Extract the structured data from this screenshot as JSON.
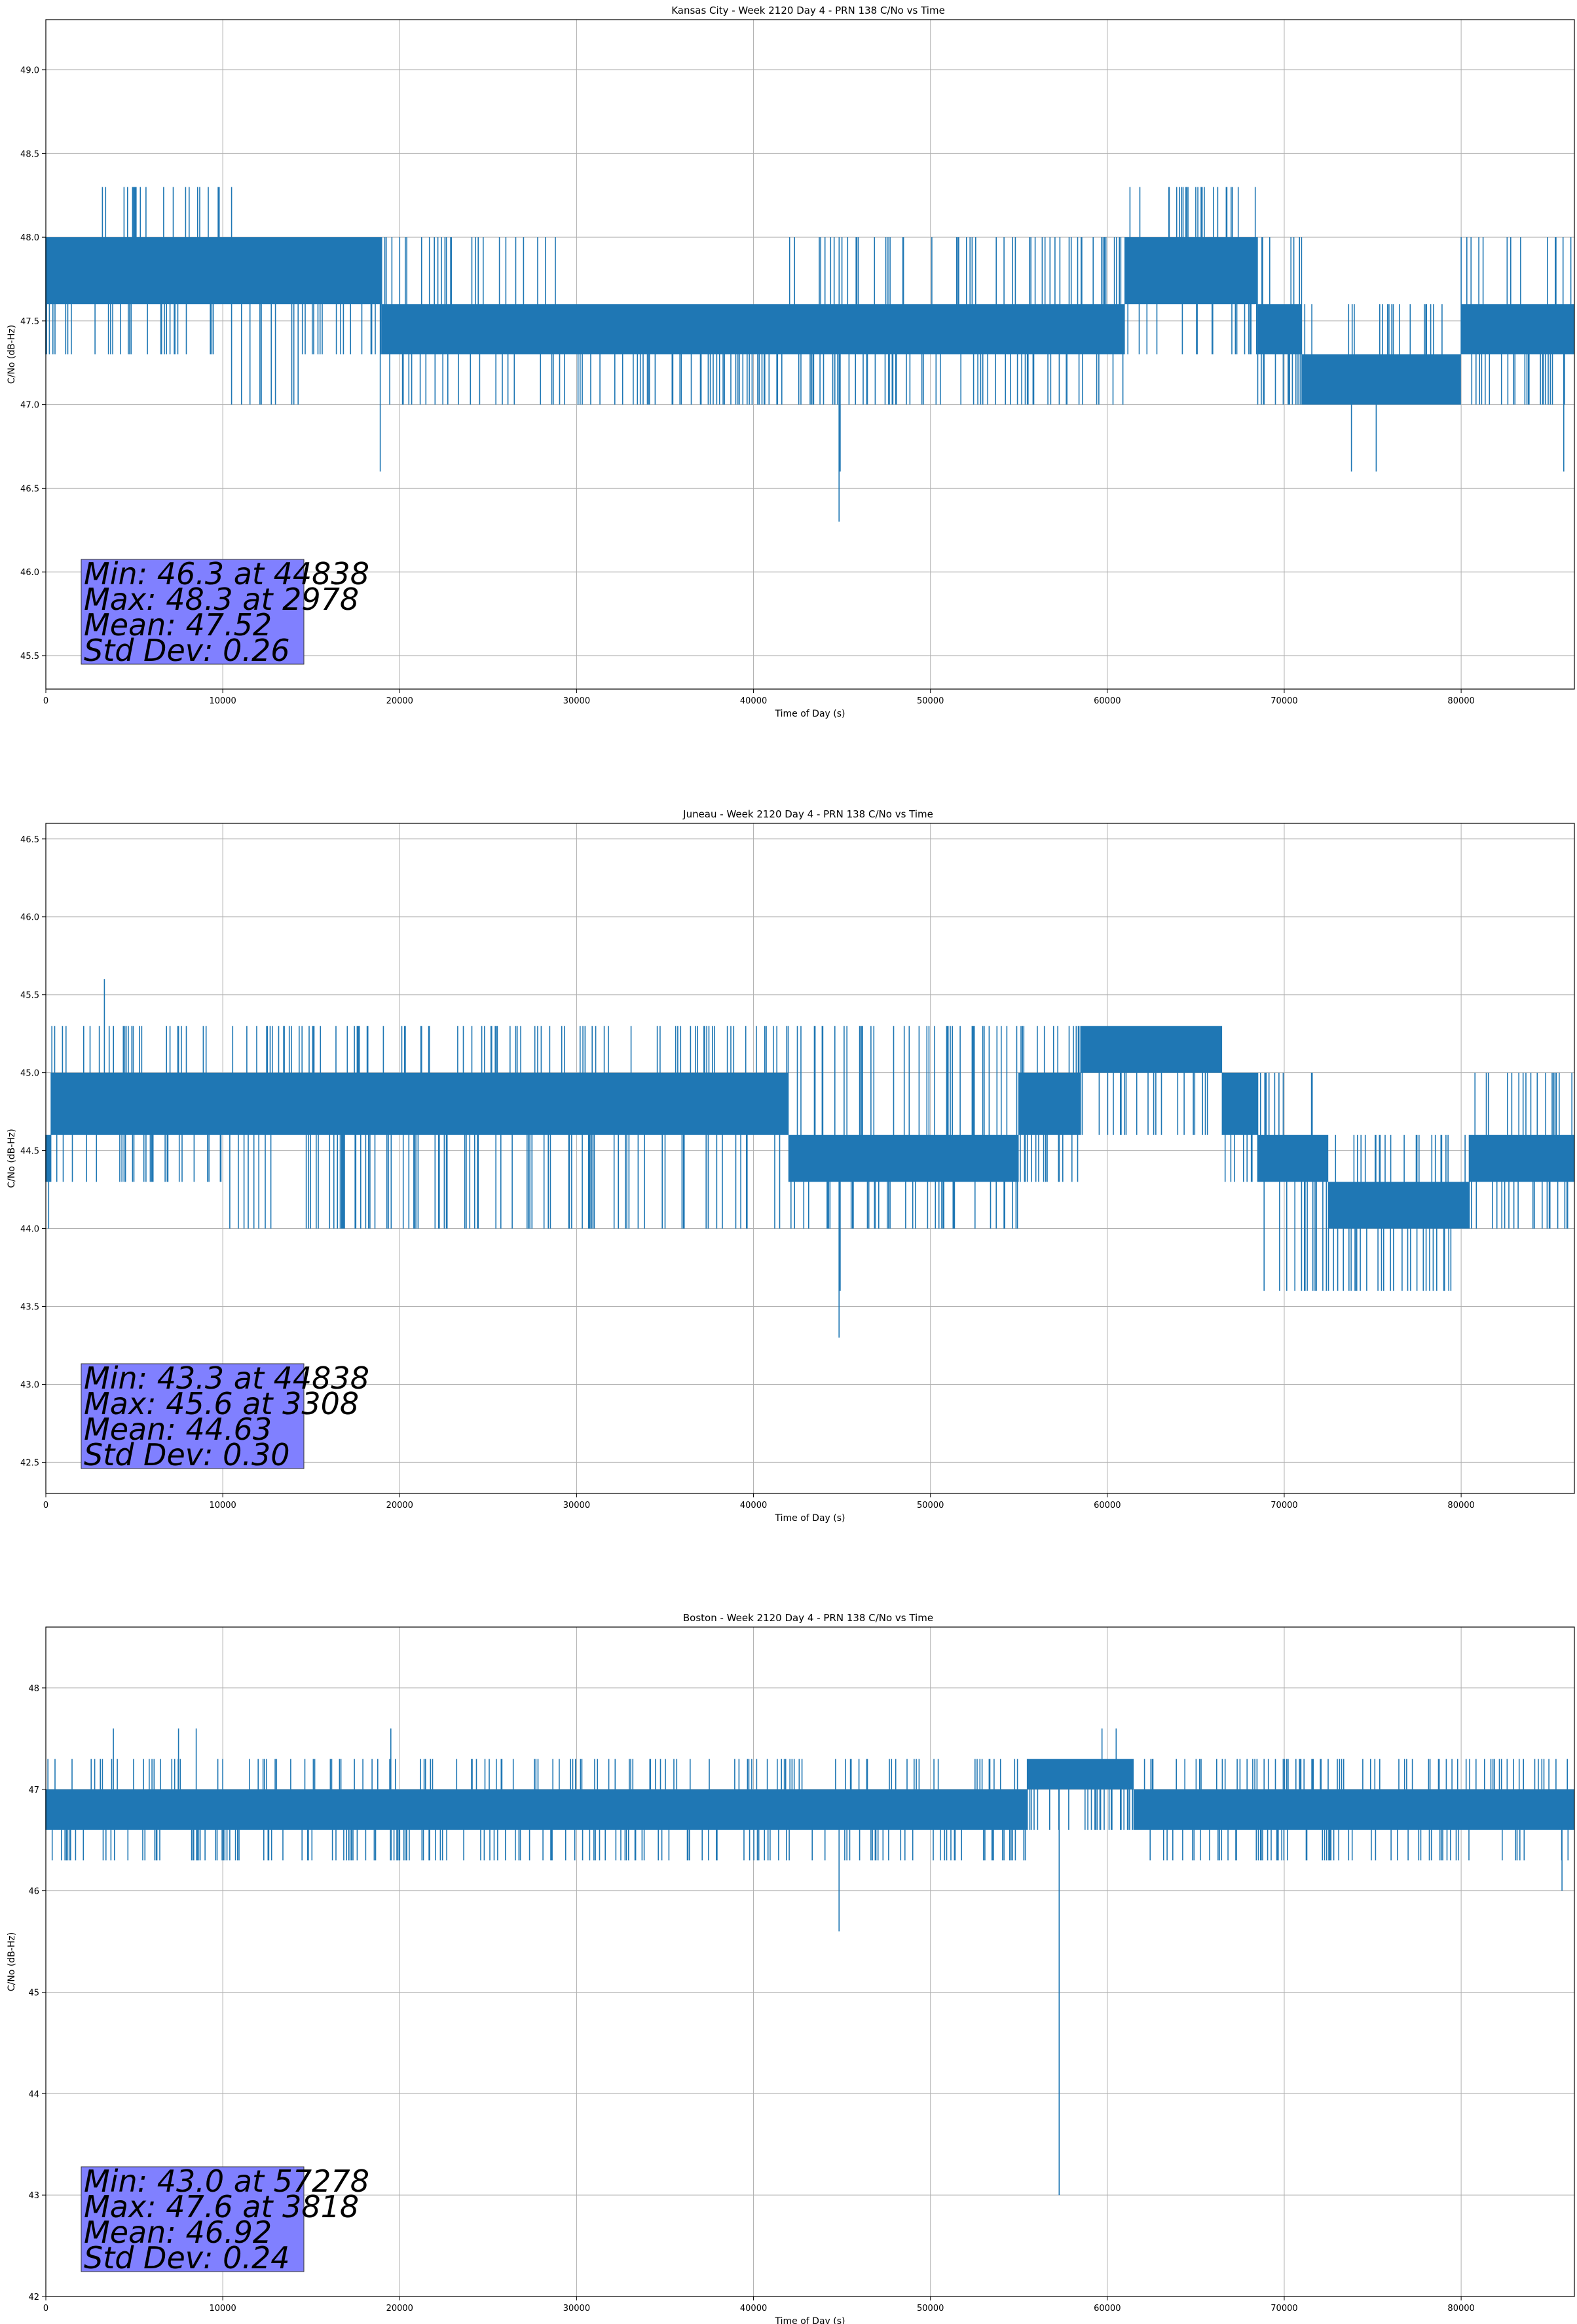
{
  "chart_data": [
    {
      "type": "line",
      "title": "Kansas City - Week 2120 Day 4 - PRN 138 C/No vs Time",
      "xlabel": "Time of Day (s)",
      "ylabel": "C/No (dB-Hz)",
      "xlim": [
        0,
        86400
      ],
      "ylim": [
        45.3,
        49.3
      ],
      "xticks": [
        0,
        10000,
        20000,
        30000,
        40000,
        50000,
        60000,
        70000,
        80000
      ],
      "yticks": [
        45.5,
        46.0,
        46.5,
        47.0,
        47.5,
        48.0,
        48.5,
        49.0
      ],
      "ytick_decimals": 1,
      "grid": true,
      "color": "#1f77b4",
      "quantization": 0.3,
      "segments": [
        {
          "from": 0,
          "to": 2500,
          "levels": [
            47.6,
            48.0
          ],
          "low": 47.3,
          "high": 48.0
        },
        {
          "from": 2500,
          "to": 10500,
          "levels": [
            47.6,
            48.0
          ],
          "low": 47.3,
          "high": 48.3
        },
        {
          "from": 10500,
          "to": 14500,
          "levels": [
            47.6,
            48.0
          ],
          "low": 47.0,
          "high": 48.0
        },
        {
          "from": 14500,
          "to": 19000,
          "levels": [
            47.6,
            48.0
          ],
          "low": 47.3,
          "high": 48.0
        },
        {
          "from": 19000,
          "to": 29000,
          "levels": [
            47.3,
            47.6
          ],
          "low": 47.0,
          "high": 48.0
        },
        {
          "from": 29000,
          "to": 42000,
          "levels": [
            47.3,
            47.6
          ],
          "low": 47.0,
          "high": 47.6
        },
        {
          "from": 42000,
          "to": 49000,
          "levels": [
            47.3,
            47.6
          ],
          "low": 47.0,
          "high": 48.0
        },
        {
          "from": 49000,
          "to": 61000,
          "levels": [
            47.3,
            47.6
          ],
          "low": 47.0,
          "high": 48.0
        },
        {
          "from": 61000,
          "to": 68500,
          "levels": [
            47.6,
            48.0
          ],
          "low": 47.3,
          "high": 48.3
        },
        {
          "from": 68500,
          "to": 71000,
          "levels": [
            47.3,
            47.6
          ],
          "low": 47.0,
          "high": 48.0
        },
        {
          "from": 71000,
          "to": 80000,
          "levels": [
            47.0,
            47.3
          ],
          "low": 47.0,
          "high": 47.6
        },
        {
          "from": 80000,
          "to": 86400,
          "levels": [
            47.3,
            47.6
          ],
          "low": 47.0,
          "high": 48.0
        }
      ],
      "spikes": [
        [
          3200,
          48.3
        ],
        [
          5000,
          48.3
        ],
        [
          7200,
          48.3
        ],
        [
          9800,
          48.3
        ],
        [
          10500,
          48.3
        ],
        [
          18900,
          46.6
        ],
        [
          44838,
          46.3
        ],
        [
          44900,
          46.6
        ],
        [
          45000,
          48.0
        ],
        [
          63500,
          48.3
        ],
        [
          64200,
          48.3
        ],
        [
          65000,
          48.3
        ],
        [
          65300,
          48.3
        ],
        [
          67000,
          48.3
        ],
        [
          73800,
          46.6
        ],
        [
          75200,
          46.6
        ],
        [
          85800,
          46.6
        ],
        [
          86200,
          48.0
        ]
      ],
      "stats_lines": [
        "Min: 46.3 at 44838",
        "Max: 48.3 at 2978",
        "Mean: 47.52",
        "Std Dev: 0.26"
      ],
      "stats_box_color": "#8080ff",
      "stats_box_anchor": "lower-left"
    },
    {
      "type": "line",
      "title": "Juneau - Week 2120 Day 4 - PRN 138 C/No vs Time",
      "xlabel": "Time of Day (s)",
      "ylabel": "C/No (dB-Hz)",
      "xlim": [
        0,
        86400
      ],
      "ylim": [
        42.3,
        46.6
      ],
      "xticks": [
        0,
        10000,
        20000,
        30000,
        40000,
        50000,
        60000,
        70000,
        80000
      ],
      "yticks": [
        42.5,
        43.0,
        43.5,
        44.0,
        44.5,
        45.0,
        45.5,
        46.0,
        46.5
      ],
      "ytick_decimals": 1,
      "grid": true,
      "color": "#1f77b4",
      "quantization": 0.3,
      "segments": [
        {
          "from": 0,
          "to": 300,
          "levels": [
            44.3,
            44.6
          ],
          "low": 44.0,
          "high": 45.3
        },
        {
          "from": 300,
          "to": 10000,
          "levels": [
            44.6,
            45.0
          ],
          "low": 44.3,
          "high": 45.3
        },
        {
          "from": 10000,
          "to": 42000,
          "levels": [
            44.6,
            45.0
          ],
          "low": 44.0,
          "high": 45.3
        },
        {
          "from": 42000,
          "to": 55000,
          "levels": [
            44.3,
            44.6
          ],
          "low": 44.0,
          "high": 45.3
        },
        {
          "from": 55000,
          "to": 58500,
          "levels": [
            44.6,
            45.0
          ],
          "low": 44.3,
          "high": 45.3
        },
        {
          "from": 58500,
          "to": 66500,
          "levels": [
            45.0,
            45.3
          ],
          "low": 44.6,
          "high": 45.3
        },
        {
          "from": 66500,
          "to": 68500,
          "levels": [
            44.6,
            45.0
          ],
          "low": 44.3,
          "high": 45.0
        },
        {
          "from": 68500,
          "to": 72500,
          "levels": [
            44.3,
            44.6
          ],
          "low": 43.6,
          "high": 45.0
        },
        {
          "from": 72500,
          "to": 80500,
          "levels": [
            44.0,
            44.3
          ],
          "low": 43.6,
          "high": 44.6
        },
        {
          "from": 80500,
          "to": 86400,
          "levels": [
            44.3,
            44.6
          ],
          "low": 44.0,
          "high": 45.0
        }
      ],
      "spikes": [
        [
          3308,
          45.6
        ],
        [
          44838,
          43.3
        ],
        [
          44900,
          43.6
        ],
        [
          70600,
          43.6
        ],
        [
          74000,
          43.6
        ],
        [
          76000,
          43.6
        ],
        [
          77500,
          43.6
        ]
      ],
      "stats_lines": [
        "Min: 43.3 at 44838",
        "Max: 45.6 at 3308",
        "Mean: 44.63",
        "Std Dev: 0.30"
      ],
      "stats_box_color": "#8080ff",
      "stats_box_anchor": "lower-left"
    },
    {
      "type": "line",
      "title": "Boston - Week 2120 Day 4 - PRN 138 C/No vs Time",
      "xlabel": "Time of Day (s)",
      "ylabel": "C/No (dB-Hz)",
      "xlim": [
        0,
        86400
      ],
      "ylim": [
        42,
        48.6
      ],
      "xticks": [
        0,
        10000,
        20000,
        30000,
        40000,
        50000,
        60000,
        70000,
        80000
      ],
      "yticks": [
        42,
        43,
        44,
        45,
        46,
        47,
        48
      ],
      "ytick_decimals": 0,
      "grid": true,
      "color": "#1f77b4",
      "quantization": 0.3,
      "segments": [
        {
          "from": 0,
          "to": 20500,
          "levels": [
            46.6,
            47.0
          ],
          "low": 46.3,
          "high": 47.3
        },
        {
          "from": 20500,
          "to": 43000,
          "levels": [
            46.6,
            47.0
          ],
          "low": 46.3,
          "high": 47.3
        },
        {
          "from": 43000,
          "to": 55500,
          "levels": [
            46.6,
            47.0
          ],
          "low": 46.3,
          "high": 47.3
        },
        {
          "from": 55500,
          "to": 61500,
          "levels": [
            47.0,
            47.3
          ],
          "low": 46.6,
          "high": 47.3
        },
        {
          "from": 61500,
          "to": 71000,
          "levels": [
            46.6,
            47.0
          ],
          "low": 46.3,
          "high": 47.3
        },
        {
          "from": 71000,
          "to": 86400,
          "levels": [
            46.6,
            47.0
          ],
          "low": 46.3,
          "high": 47.3
        }
      ],
      "spikes": [
        [
          3818,
          47.6
        ],
        [
          7500,
          47.6
        ],
        [
          8500,
          47.6
        ],
        [
          19500,
          47.6
        ],
        [
          44838,
          45.6
        ],
        [
          57278,
          43.0
        ],
        [
          59700,
          47.6
        ],
        [
          60500,
          47.6
        ],
        [
          85700,
          46.0
        ]
      ],
      "stats_lines": [
        "Min: 43.0 at 57278",
        "Max: 47.6 at 3818",
        "Mean: 46.92",
        "Std Dev: 0.24"
      ],
      "stats_box_color": "#8080ff",
      "stats_box_anchor": "lower-left"
    }
  ]
}
